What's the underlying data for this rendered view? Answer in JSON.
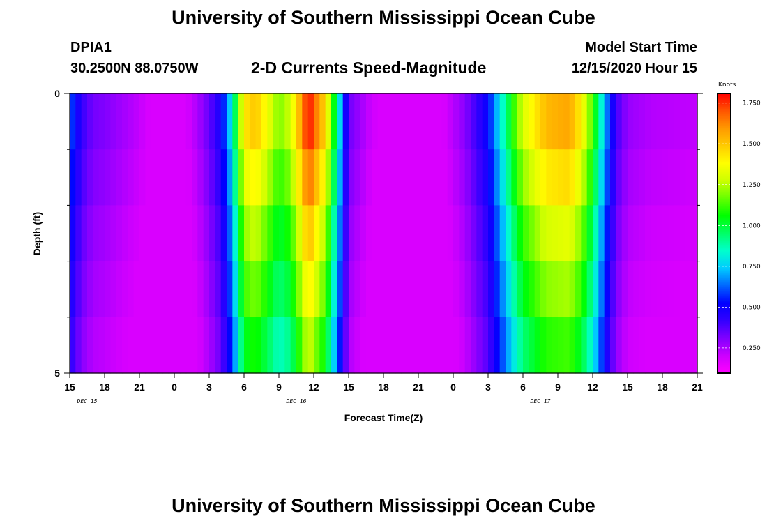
{
  "page": {
    "title_top": "University of Southern Mississippi Ocean Cube",
    "title_bottom": "University of Southern Mississippi Ocean Cube",
    "station_id": "DPIA1",
    "station_coords": "30.2500N 88.0750W",
    "plot_title": "2-D Currents Speed-Magnitude",
    "model_start_label": "Model Start Time",
    "model_start_value": "12/15/2020 Hour 15"
  },
  "chart_data": {
    "type": "heatmap",
    "title": "2-D Currents Speed-Magnitude",
    "xlabel": "Forecast Time(Z)",
    "ylabel": "Depth (ft)",
    "x_tick_labels": [
      "15",
      "18",
      "21",
      "0",
      "3",
      "6",
      "9",
      "12",
      "15",
      "18",
      "21",
      "0",
      "3",
      "6",
      "9",
      "12",
      "15",
      "18",
      "21"
    ],
    "date_labels": [
      {
        "text": "DEC 15",
        "at_tick_index": 1
      },
      {
        "text": "DEC 16",
        "at_tick_index": 7
      },
      {
        "text": "DEC 17",
        "at_tick_index": 14
      }
    ],
    "y_tick_labels": [
      "0",
      "5"
    ],
    "ylim": [
      0,
      5
    ],
    "hours": [
      0,
      54
    ],
    "depth_rows": 5,
    "colorbar": {
      "title": "Knots",
      "tick_labels": [
        "1.750",
        "1.500",
        "1.250",
        "1.000",
        "0.750",
        "0.500",
        "0.250"
      ],
      "tick_values": [
        1.75,
        1.5,
        1.25,
        1.0,
        0.75,
        0.5,
        0.25
      ],
      "range": [
        0.1,
        1.8
      ],
      "colors": [
        "#ff00ff",
        "#cc00ff",
        "#8000ff",
        "#3300ff",
        "#0000ff",
        "#0066ff",
        "#00ccff",
        "#00ffcc",
        "#00ff66",
        "#00ff00",
        "#66ff00",
        "#ccff00",
        "#ffff00",
        "#ffcc00",
        "#ff9900",
        "#ff5500",
        "#ff0000"
      ]
    },
    "time_profile": [
      [
        0,
        0.62
      ],
      [
        1,
        0.42
      ],
      [
        2,
        0.33
      ],
      [
        3,
        0.31
      ],
      [
        4,
        0.28
      ],
      [
        6,
        0.22
      ],
      [
        7,
        0.17
      ],
      [
        8,
        0.15
      ],
      [
        10,
        0.18
      ],
      [
        11,
        0.25
      ],
      [
        12,
        0.35
      ],
      [
        13,
        0.48
      ],
      [
        14,
        0.82
      ],
      [
        15,
        1.42
      ],
      [
        16,
        1.5
      ],
      [
        17,
        1.35
      ],
      [
        18,
        1.18
      ],
      [
        19,
        1.28
      ],
      [
        20,
        1.6
      ],
      [
        20.5,
        1.8
      ],
      [
        21,
        1.68
      ],
      [
        22,
        1.45
      ],
      [
        23,
        0.9
      ],
      [
        24,
        0.34
      ],
      [
        26,
        0.2
      ],
      [
        28,
        0.13
      ],
      [
        30,
        0.11
      ],
      [
        32,
        0.17
      ],
      [
        34,
        0.3
      ],
      [
        36,
        0.52
      ],
      [
        37,
        0.78
      ],
      [
        38,
        1.05
      ],
      [
        39,
        1.3
      ],
      [
        41,
        1.52
      ],
      [
        43,
        1.56
      ],
      [
        44,
        1.4
      ],
      [
        45,
        1.12
      ],
      [
        46,
        0.72
      ],
      [
        47,
        0.4
      ],
      [
        48,
        0.28
      ],
      [
        50,
        0.24
      ],
      [
        54,
        0.22
      ]
    ],
    "depth_factors": [
      1.0,
      0.93,
      0.85,
      0.79,
      0.72
    ],
    "depth_min_speed": 0.18
  }
}
